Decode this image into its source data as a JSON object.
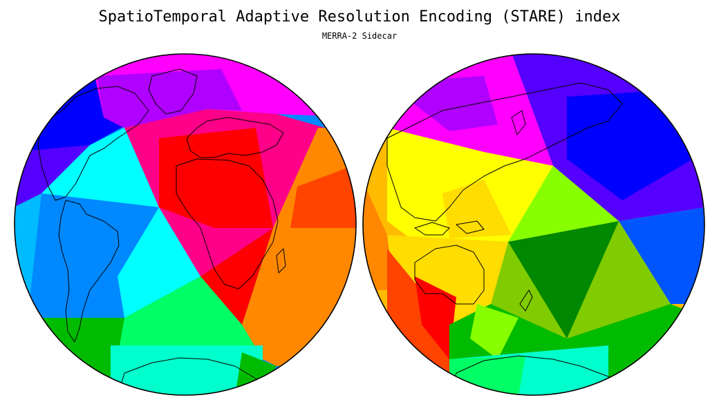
{
  "title": "SpatioTemporal Adaptive Resolution Encoding (STARE) index",
  "subtitle": "MERRA-2 Sidecar",
  "colors": {
    "magenta": "#ff00ff",
    "violet": "#b000ff",
    "indigo": "#5500ff",
    "blue": "#0000ff",
    "royal": "#0055ff",
    "azure": "#0088ff",
    "sky": "#00bbff",
    "cyan": "#00ffff",
    "aqua": "#00ffcc",
    "spring": "#00ff66",
    "green": "#00bb00",
    "darkgreen": "#008800",
    "lime": "#88ff00",
    "olive": "#80cc00",
    "yellow": "#ffff00",
    "gold": "#ffdd00",
    "amber": "#ffbb00",
    "orange": "#ff8800",
    "redorange": "#ff4400",
    "red": "#ff0000",
    "crimson": "#ff0044",
    "rose": "#ff0088",
    "pink": "#ff00aa"
  }
}
